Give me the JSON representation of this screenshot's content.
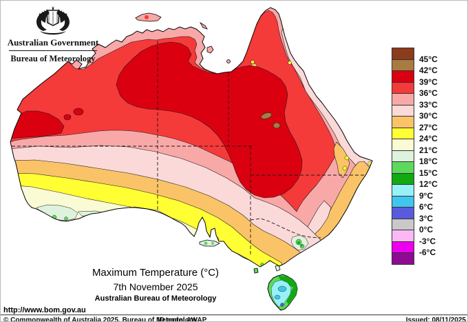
{
  "header": {
    "government": "Australian Government",
    "bureau": "Bureau of Meteorology"
  },
  "palette": {
    "darkbrown": "#8C3B1B",
    "brown": "#A87B41",
    "darkred": "#DB0010",
    "red": "#F53A3A",
    "salmon": "#F9A8A8",
    "palepink": "#FBD9D9",
    "orange": "#FAC368",
    "yellow": "#FFFF33",
    "cream": "#FAFAD4",
    "palegreen": "#DFF2DE",
    "lightgreen": "#5CD95C",
    "green": "#12A912",
    "lightcyan": "#97F1F7",
    "cyan": "#3FC6EF",
    "blue": "#5A5ADF",
    "gray": "#C9C9C9",
    "lightmagenta": "#FBB8F4",
    "magenta": "#EE00EE",
    "purple": "#8F0B94"
  },
  "legend": {
    "cells": [
      {
        "band": "darkbrown",
        "range": "above 45"
      },
      {
        "band": "brown",
        "range": "42 to 45"
      },
      {
        "band": "darkred",
        "range": "39 to 42"
      },
      {
        "band": "red",
        "range": "36 to 39"
      },
      {
        "band": "salmon",
        "range": "33 to 36"
      },
      {
        "band": "palepink",
        "range": "30 to 33"
      },
      {
        "band": "orange",
        "range": "27 to 30"
      },
      {
        "band": "yellow",
        "range": "24 to 27"
      },
      {
        "band": "cream",
        "range": "21 to 24"
      },
      {
        "band": "palegreen",
        "range": "18 to 21"
      },
      {
        "band": "lightgreen",
        "range": "15 to 18"
      },
      {
        "band": "green",
        "range": "12 to 15"
      },
      {
        "band": "lightcyan",
        "range": "9 to 12"
      },
      {
        "band": "cyan",
        "range": "6 to 9"
      },
      {
        "band": "blue",
        "range": "3 to 6"
      },
      {
        "band": "gray",
        "range": "0 to 3"
      },
      {
        "band": "lightmagenta",
        "range": "-3 to 0"
      },
      {
        "band": "magenta",
        "range": "-6 to -3"
      },
      {
        "band": "purple",
        "range": "below -6"
      }
    ],
    "labels": [
      "45°C",
      "42°C",
      "39°C",
      "36°C",
      "33°C",
      "30°C",
      "27°C",
      "24°C",
      "21°C",
      "18°C",
      "15°C",
      "12°C",
      "9°C",
      "6°C",
      "3°C",
      "0°C",
      "-3°C",
      "-6°C"
    ]
  },
  "caption": {
    "title": "Maximum Temperature (°C)",
    "date": "7th November 2025",
    "org": "Australian Bureau of Meteorology"
  },
  "footer": {
    "url": "http://www.bom.gov.au",
    "copyright": "© Commonwealth of Australia 2025, Bureau of Meteorology",
    "id_code": "ID code: AWAP",
    "issued": "Issued: 08/11/2025"
  }
}
